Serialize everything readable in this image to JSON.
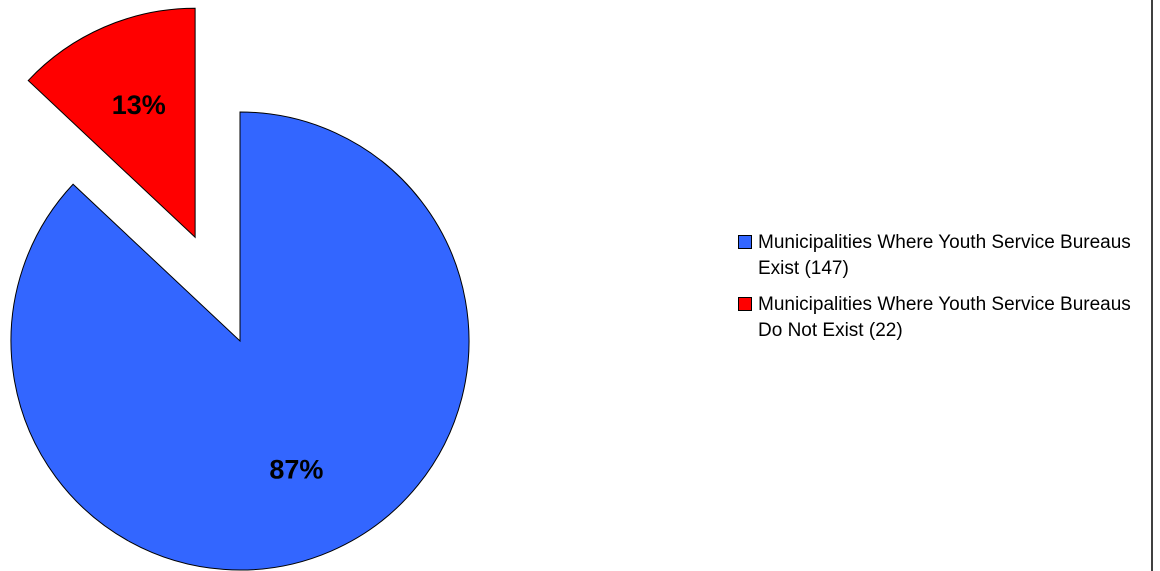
{
  "chart_data": {
    "type": "pie",
    "categories": [
      "Municipalities Where Youth Service Bureaus Exist (147)",
      "Municipalities Where Youth Service Bureaus Do Not Exist (22)"
    ],
    "values": [
      87,
      13
    ],
    "value_labels": [
      "87%",
      "13%"
    ],
    "colors": [
      "#3366ff",
      "#ff0000"
    ],
    "exploded": [
      false,
      true
    ],
    "legend": "right"
  }
}
